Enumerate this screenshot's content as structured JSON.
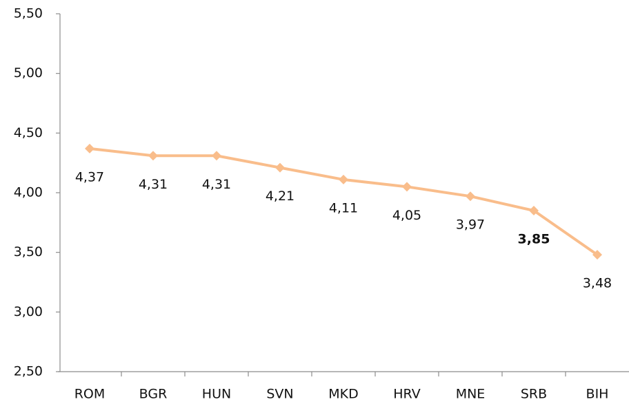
{
  "chart_data": {
    "type": "line",
    "categories": [
      "ROM",
      "BGR",
      "HUN",
      "SVN",
      "MKD",
      "HRV",
      "MNE",
      "SRB",
      "BIH"
    ],
    "series": [
      {
        "name": null,
        "color": "#f9bd8b",
        "values": [
          4.37,
          4.31,
          4.31,
          4.21,
          4.11,
          4.05,
          3.97,
          3.85,
          3.48
        ],
        "value_labels": [
          "4,37",
          "4,31",
          "4,31",
          "4,21",
          "4,11",
          "4,05",
          "3,97",
          "3,85",
          "3,48"
        ]
      }
    ],
    "highlight": "SRB",
    "ylim": [
      2.5,
      5.5
    ],
    "yticks": [
      {
        "value": 2.5,
        "label": "2,50"
      },
      {
        "value": 3.0,
        "label": "3,00"
      },
      {
        "value": 3.5,
        "label": "3,50"
      },
      {
        "value": 4.0,
        "label": "4,00"
      },
      {
        "value": 4.5,
        "label": "4,50"
      },
      {
        "value": 5.0,
        "label": "5,00"
      },
      {
        "value": 5.5,
        "label": "5,50"
      }
    ],
    "grid": false
  }
}
